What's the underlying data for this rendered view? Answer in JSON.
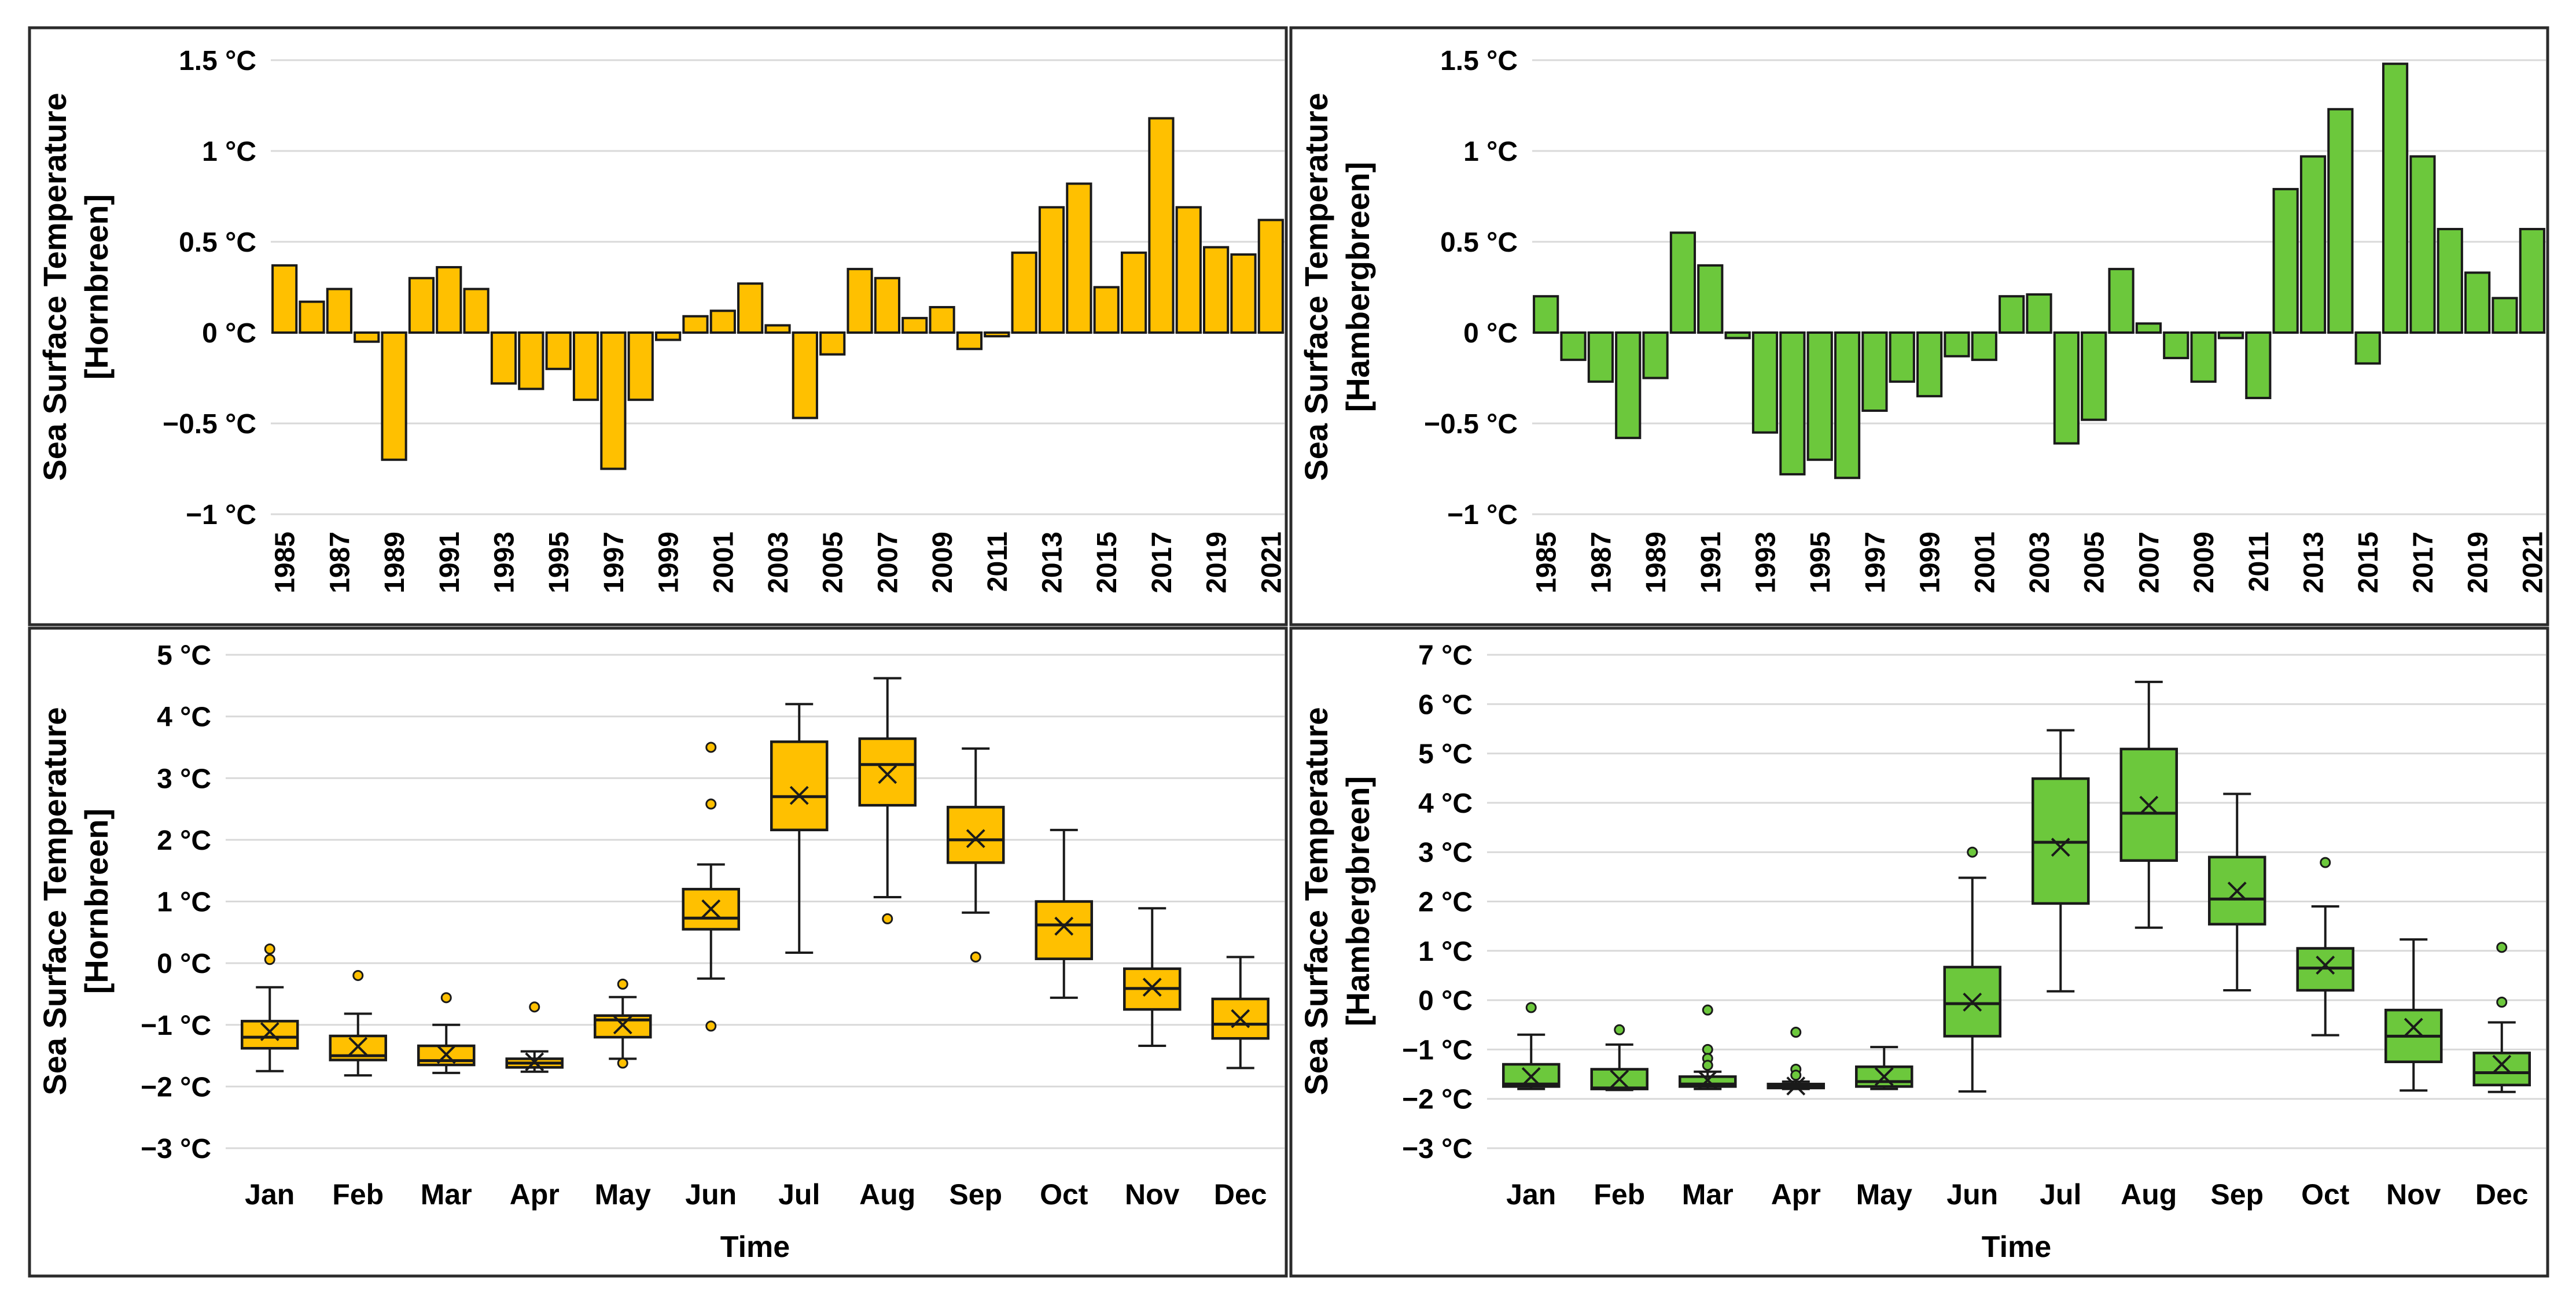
{
  "figure": {
    "background": "#FFFFFF",
    "frame_color": "#2B2B2B",
    "gridline_color": "#D9D9D9",
    "orange": "#FFC000",
    "green": "#6CC83C"
  },
  "chart_data": [
    {
      "panel": "top-left",
      "type": "bar",
      "series_name": "Sea Surface Temperature [Hornbreen] annual anomaly",
      "title_lines": [
        "Sea Surface Temperature",
        "[Hornbreen]"
      ],
      "xlabel": "",
      "color": "#FFC000",
      "ylim": [
        -1,
        1.5
      ],
      "grid": true,
      "ytick_values": [
        1.5,
        1,
        0.5,
        0,
        -0.5,
        -1
      ],
      "ytick_labels": [
        "1.5 °C",
        "1 °C",
        "0.5 °C",
        "0 °C",
        "−0.5 °C",
        "−1 °C"
      ],
      "categories": [
        "1985",
        "1986",
        "1987",
        "1988",
        "1989",
        "1990",
        "1991",
        "1992",
        "1993",
        "1994",
        "1995",
        "1996",
        "1997",
        "1998",
        "1999",
        "2000",
        "2001",
        "2002",
        "2003",
        "2004",
        "2005",
        "2006",
        "2007",
        "2008",
        "2009",
        "2010",
        "2011",
        "2012",
        "2013",
        "2014",
        "2015",
        "2016",
        "2017",
        "2018",
        "2019",
        "2020",
        "2021"
      ],
      "values": [
        0.37,
        0.17,
        0.24,
        -0.05,
        -0.7,
        0.3,
        0.36,
        0.24,
        -0.28,
        -0.31,
        -0.2,
        -0.37,
        -0.75,
        -0.37,
        -0.04,
        0.09,
        0.12,
        0.27,
        0.04,
        -0.47,
        -0.12,
        0.35,
        0.3,
        0.08,
        0.14,
        -0.09,
        -0.02,
        0.44,
        0.69,
        0.82,
        0.25,
        0.44,
        1.18,
        0.69,
        0.47,
        0.43,
        0.62
      ]
    },
    {
      "panel": "top-right",
      "type": "bar",
      "series_name": "Sea Surface Temperature [Hambergbreen] annual anomaly",
      "title_lines": [
        "Sea Surface Temperature",
        "[Hambergbreen]"
      ],
      "xlabel": "",
      "color": "#6CC83C",
      "ylim": [
        -1,
        1.5
      ],
      "grid": true,
      "ytick_values": [
        1.5,
        1,
        0.5,
        0,
        -0.5,
        -1
      ],
      "ytick_labels": [
        "1.5 °C",
        "1 °C",
        "0.5 °C",
        "0 °C",
        "−0.5 °C",
        "−1 °C"
      ],
      "categories": [
        "1985",
        "1986",
        "1987",
        "1988",
        "1989",
        "1990",
        "1991",
        "1992",
        "1993",
        "1994",
        "1995",
        "1996",
        "1997",
        "1998",
        "1999",
        "2000",
        "2001",
        "2002",
        "2003",
        "2004",
        "2005",
        "2006",
        "2007",
        "2008",
        "2009",
        "2010",
        "2011",
        "2012",
        "2013",
        "2014",
        "2015",
        "2016",
        "2017",
        "2018",
        "2019",
        "2020",
        "2021"
      ],
      "values": [
        0.2,
        -0.15,
        -0.27,
        -0.58,
        -0.25,
        0.55,
        0.37,
        -0.03,
        -0.55,
        -0.78,
        -0.7,
        -0.8,
        -0.43,
        -0.27,
        -0.35,
        -0.13,
        -0.15,
        0.2,
        0.21,
        -0.61,
        -0.48,
        0.35,
        0.05,
        -0.14,
        -0.27,
        -0.03,
        -0.36,
        0.79,
        0.97,
        1.23,
        -0.17,
        1.48,
        0.97,
        0.57,
        0.33,
        0.19,
        0.57
      ]
    },
    {
      "panel": "bottom-left",
      "type": "box",
      "series_name": "Sea Surface Temperature [Hornbreen] monthly distribution",
      "title_lines": [
        "Sea Surface Temperature",
        "[Hornbreen]"
      ],
      "xlabel": "Time",
      "color": "#FFC000",
      "ylim": [
        -3,
        5
      ],
      "grid": true,
      "ytick_values": [
        5,
        4,
        3,
        2,
        1,
        0,
        -1,
        -2,
        -3
      ],
      "ytick_labels": [
        "5 °C",
        "4 °C",
        "3 °C",
        "2 °C",
        "1 °C",
        "0 °C",
        "−1 °C",
        "−2 °C",
        "−3 °C"
      ],
      "boxes": [
        {
          "month": "Jan",
          "whislo": -1.75,
          "q1": -1.38,
          "med": -1.2,
          "mean": -1.11,
          "q3": -0.94,
          "whishi": -0.39,
          "outliers": [
            0.23,
            0.06
          ]
        },
        {
          "month": "Feb",
          "whislo": -1.82,
          "q1": -1.57,
          "med": -1.5,
          "mean": -1.35,
          "q3": -1.18,
          "whishi": -0.82,
          "outliers": [
            -0.2
          ]
        },
        {
          "month": "Mar",
          "whislo": -1.78,
          "q1": -1.65,
          "med": -1.58,
          "mean": -1.48,
          "q3": -1.34,
          "whishi": -1.0,
          "outliers": [
            -0.56
          ]
        },
        {
          "month": "Apr",
          "whislo": -1.76,
          "q1": -1.69,
          "med": -1.62,
          "mean": -1.6,
          "q3": -1.55,
          "whishi": -1.43,
          "outliers": [
            -0.71
          ]
        },
        {
          "month": "May",
          "whislo": -1.55,
          "q1": -1.2,
          "med": -0.92,
          "mean": -1.0,
          "q3": -0.85,
          "whishi": -0.55,
          "outliers": [
            -0.34,
            -1.62
          ]
        },
        {
          "month": "Jun",
          "whislo": -0.25,
          "q1": 0.55,
          "med": 0.73,
          "mean": 0.88,
          "q3": 1.2,
          "whishi": 1.6,
          "outliers": [
            3.5,
            2.58,
            -1.02
          ]
        },
        {
          "month": "Jul",
          "whislo": 0.17,
          "q1": 2.16,
          "med": 2.7,
          "mean": 2.72,
          "q3": 3.59,
          "whishi": 4.2,
          "outliers": []
        },
        {
          "month": "Aug",
          "whislo": 1.07,
          "q1": 2.56,
          "med": 3.22,
          "mean": 3.06,
          "q3": 3.64,
          "whishi": 4.62,
          "outliers": [
            0.72
          ]
        },
        {
          "month": "Sep",
          "whislo": 0.82,
          "q1": 1.63,
          "med": 2.0,
          "mean": 2.02,
          "q3": 2.53,
          "whishi": 3.48,
          "outliers": [
            0.1
          ]
        },
        {
          "month": "Oct",
          "whislo": -0.56,
          "q1": 0.07,
          "med": 0.62,
          "mean": 0.6,
          "q3": 1.0,
          "whishi": 2.16,
          "outliers": []
        },
        {
          "month": "Nov",
          "whislo": -1.34,
          "q1": -0.75,
          "med": -0.41,
          "mean": -0.39,
          "q3": -0.09,
          "whishi": 0.89,
          "outliers": []
        },
        {
          "month": "Dec",
          "whislo": -1.7,
          "q1": -1.22,
          "med": -0.99,
          "mean": -0.9,
          "q3": -0.58,
          "whishi": 0.1,
          "outliers": []
        }
      ]
    },
    {
      "panel": "bottom-right",
      "type": "box",
      "series_name": "Sea Surface Temperature [Hambergbreen] monthly distribution",
      "title_lines": [
        "Sea Surface Temperature",
        "[Hambergbreen]"
      ],
      "xlabel": "Time",
      "color": "#6CC83C",
      "ylim": [
        -3,
        7
      ],
      "grid": true,
      "ytick_values": [
        7,
        6,
        5,
        4,
        3,
        2,
        1,
        0,
        -1,
        -2,
        -3
      ],
      "ytick_labels": [
        "7 °C",
        "6 °C",
        "5 °C",
        "4 °C",
        "3 °C",
        "2 °C",
        "1 °C",
        "0 °C",
        "−1 °C",
        "−2 °C",
        "−3 °C"
      ],
      "boxes": [
        {
          "month": "Jan",
          "whislo": -1.8,
          "q1": -1.75,
          "med": -1.7,
          "mean": -1.55,
          "q3": -1.3,
          "whishi": -0.7,
          "outliers": [
            -0.15
          ]
        },
        {
          "month": "Feb",
          "whislo": -1.82,
          "q1": -1.8,
          "med": -1.78,
          "mean": -1.6,
          "q3": -1.4,
          "whishi": -0.9,
          "outliers": [
            -0.6
          ]
        },
        {
          "month": "Mar",
          "whislo": -1.8,
          "q1": -1.75,
          "med": -1.7,
          "mean": -1.62,
          "q3": -1.55,
          "whishi": -1.45,
          "outliers": [
            -0.2,
            -1.0,
            -1.18,
            -1.32
          ]
        },
        {
          "month": "Apr",
          "whislo": -1.8,
          "q1": -1.78,
          "med": -1.75,
          "mean": -1.74,
          "q3": -1.7,
          "whishi": -1.65,
          "outliers": [
            -0.65,
            -1.4,
            -1.52
          ]
        },
        {
          "month": "May",
          "whislo": -1.8,
          "q1": -1.75,
          "med": -1.65,
          "mean": -1.55,
          "q3": -1.35,
          "whishi": -0.95,
          "outliers": []
        },
        {
          "month": "Jun",
          "whislo": -1.85,
          "q1": -0.73,
          "med": -0.07,
          "mean": -0.04,
          "q3": 0.67,
          "whishi": 2.48,
          "outliers": [
            3.0
          ]
        },
        {
          "month": "Jul",
          "whislo": 0.18,
          "q1": 1.96,
          "med": 3.2,
          "mean": 3.1,
          "q3": 4.49,
          "whishi": 5.47,
          "outliers": []
        },
        {
          "month": "Aug",
          "whislo": 1.47,
          "q1": 2.83,
          "med": 3.79,
          "mean": 3.95,
          "q3": 5.09,
          "whishi": 6.45,
          "outliers": []
        },
        {
          "month": "Sep",
          "whislo": 0.2,
          "q1": 1.54,
          "med": 2.05,
          "mean": 2.21,
          "q3": 2.9,
          "whishi": 4.18,
          "outliers": []
        },
        {
          "month": "Oct",
          "whislo": -0.71,
          "q1": 0.2,
          "med": 0.65,
          "mean": 0.71,
          "q3": 1.05,
          "whishi": 1.9,
          "outliers": [
            2.79
          ]
        },
        {
          "month": "Nov",
          "whislo": -1.83,
          "q1": -1.25,
          "med": -0.73,
          "mean": -0.55,
          "q3": -0.2,
          "whishi": 1.23,
          "outliers": []
        },
        {
          "month": "Dec",
          "whislo": -1.86,
          "q1": -1.72,
          "med": -1.47,
          "mean": -1.3,
          "q3": -1.07,
          "whishi": -0.45,
          "outliers": [
            1.07,
            -0.04
          ]
        }
      ]
    }
  ]
}
